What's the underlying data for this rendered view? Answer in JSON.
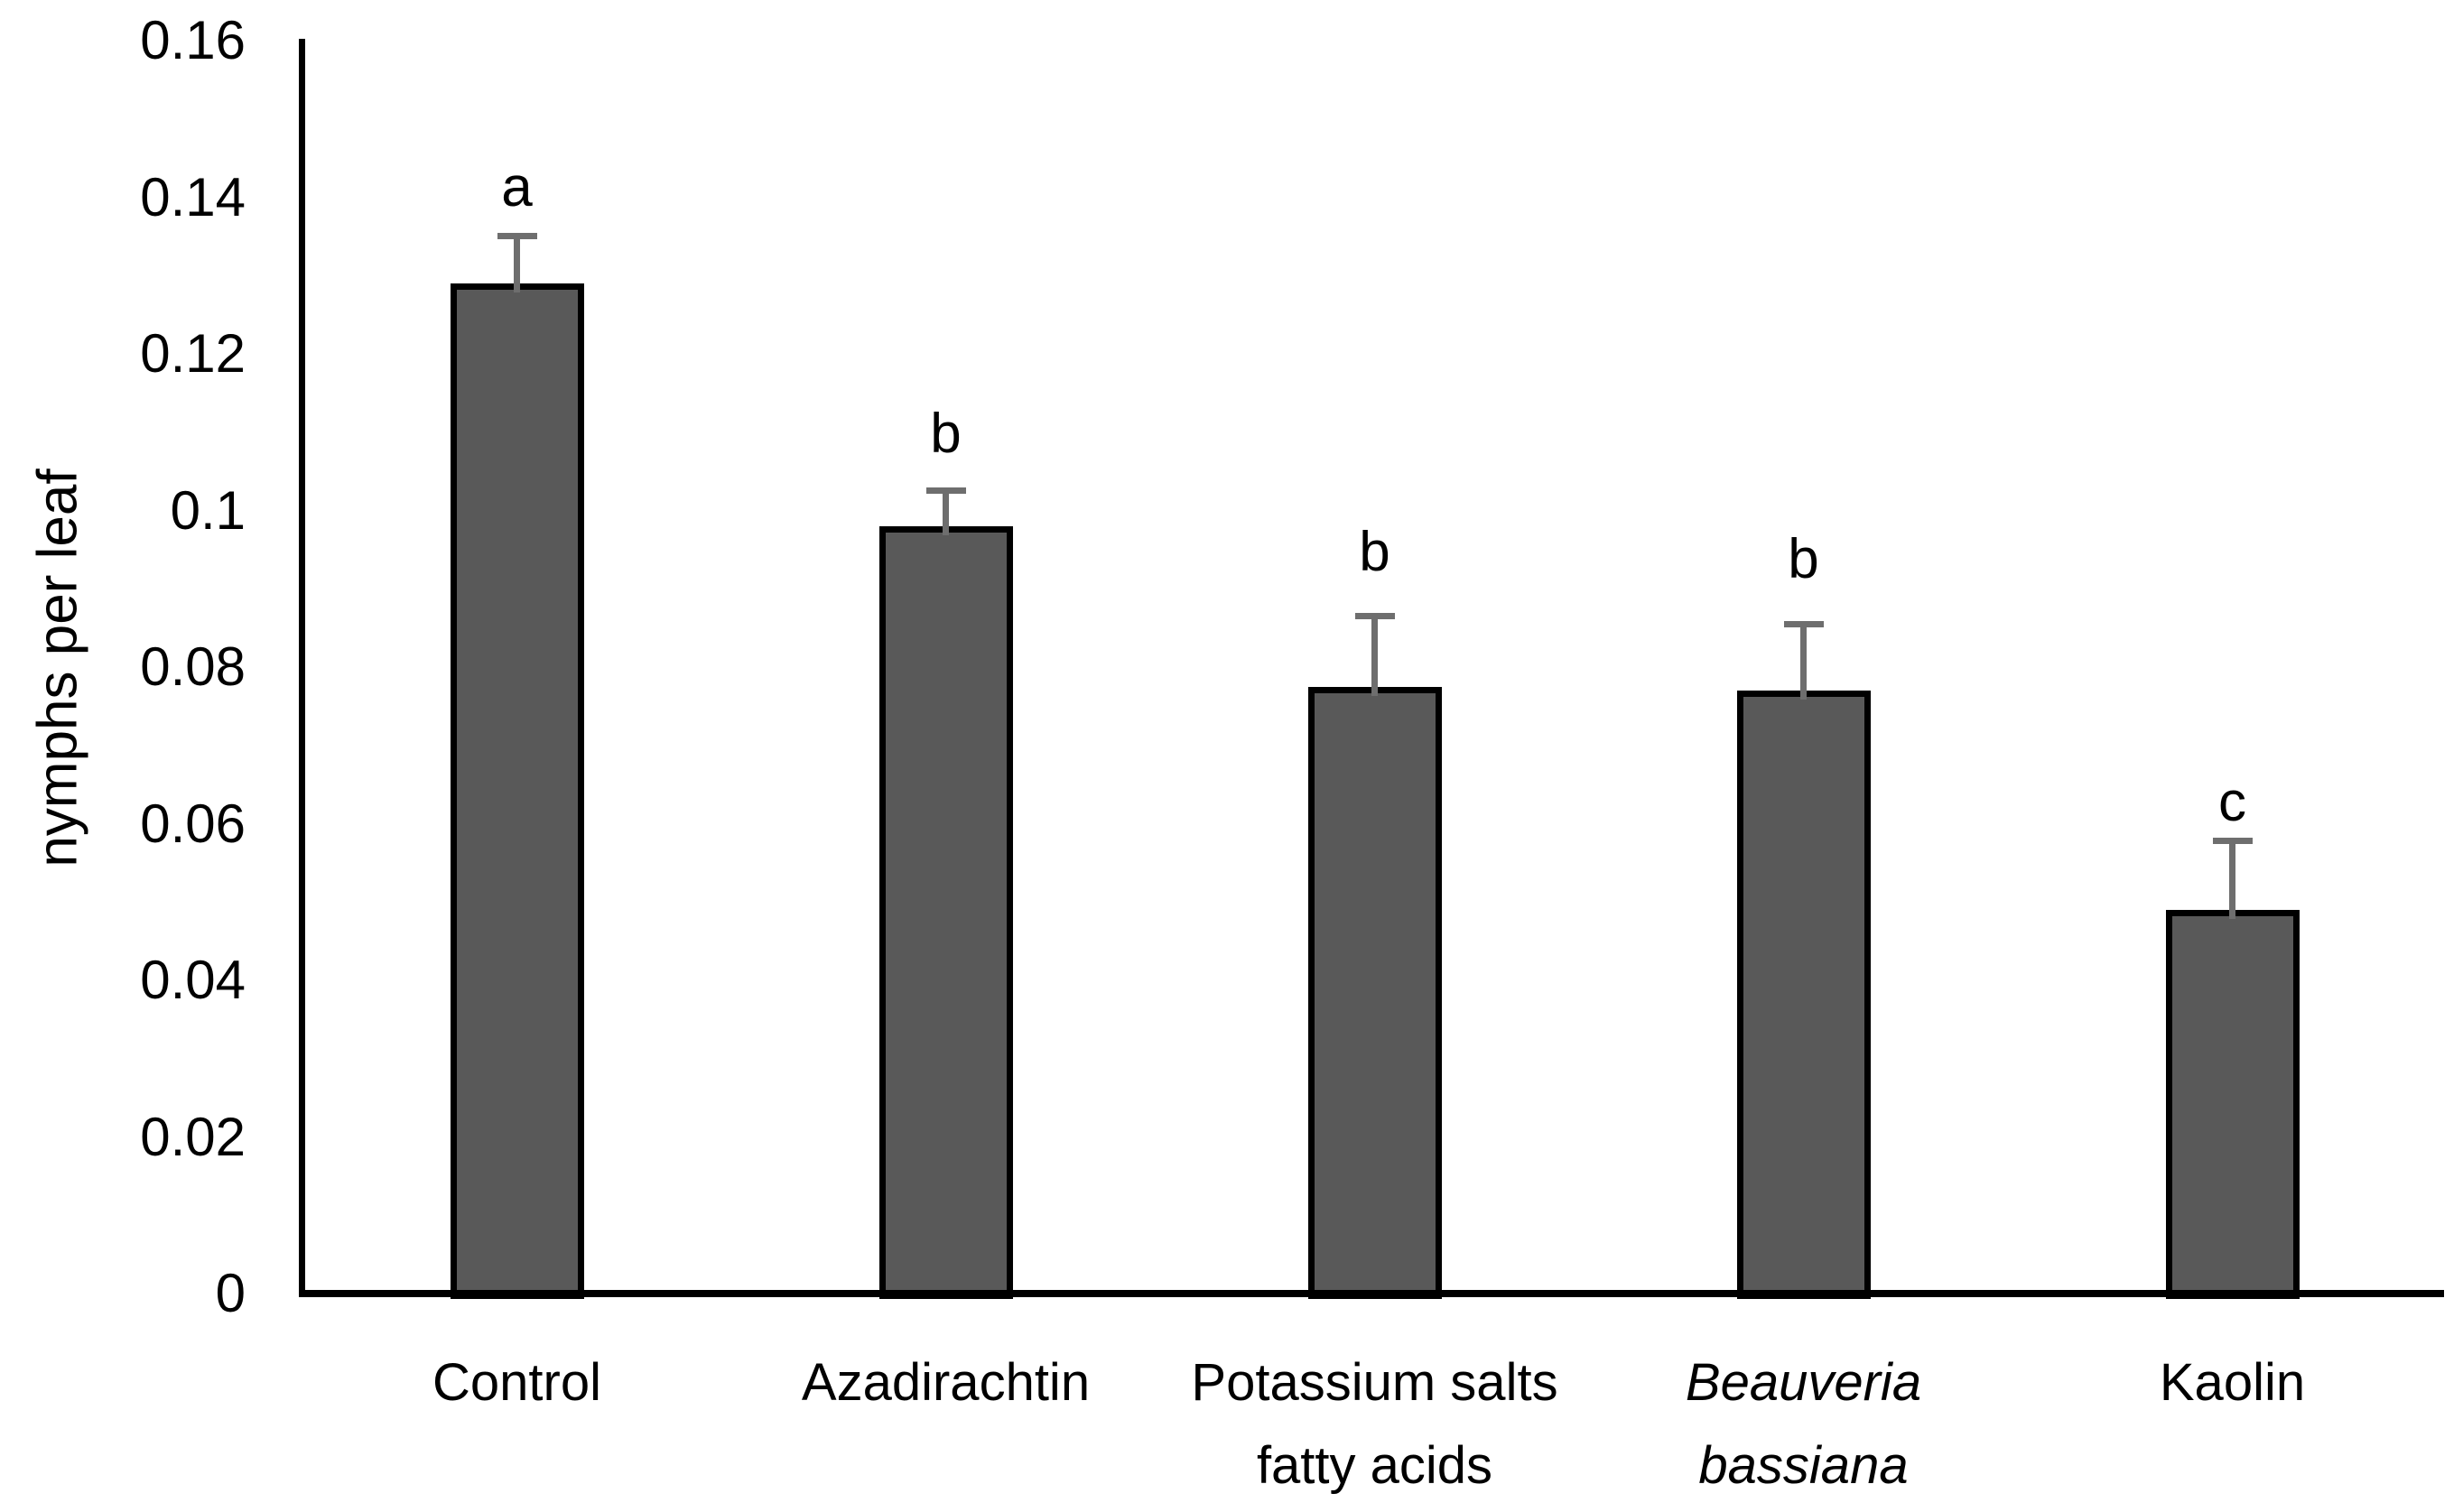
{
  "chart_data": {
    "type": "bar",
    "title": "",
    "xlabel": "",
    "ylabel": "nymphs per leaf",
    "ylim": [
      0,
      0.16
    ],
    "ytick_step": 0.02,
    "grid": false,
    "legend": false,
    "bar_fill_color": "#595959",
    "bar_border_color": "#000000",
    "error_bar_color": "#6e6e6e",
    "axis_color": "#000000",
    "yticks": [
      {
        "label": "0.16",
        "value": 0.16
      },
      {
        "label": "0.14",
        "value": 0.14
      },
      {
        "label": "0.12",
        "value": 0.12
      },
      {
        "label": "0.1",
        "value": 0.1
      },
      {
        "label": "0.08",
        "value": 0.08
      },
      {
        "label": "0.06",
        "value": 0.06
      },
      {
        "label": "0.04",
        "value": 0.04
      },
      {
        "label": "0.02",
        "value": 0.02
      },
      {
        "label": "0",
        "value": 0
      }
    ],
    "categories": [
      "Control",
      "Azadirachtin",
      "Potassium salts fatty acids",
      "Beauveria bassiana",
      "Kaolin"
    ],
    "bars": [
      {
        "category_lines": [
          "Control"
        ],
        "italic": false,
        "value": 0.129,
        "error_top": 0.135,
        "sig_letter": "a",
        "letter_bottom_value": 0.1375
      },
      {
        "category_lines": [
          "Azadirachtin"
        ],
        "italic": false,
        "value": 0.098,
        "error_top": 0.1025,
        "sig_letter": "b",
        "letter_bottom_value": 0.106
      },
      {
        "category_lines": [
          "Potassium salts",
          "fatty acids"
        ],
        "italic": false,
        "value": 0.0775,
        "error_top": 0.0865,
        "sig_letter": "b",
        "letter_bottom_value": 0.091
      },
      {
        "category_lines": [
          "Beauveria",
          "bassiana"
        ],
        "italic": true,
        "value": 0.077,
        "error_top": 0.0855,
        "sig_letter": "b",
        "letter_bottom_value": 0.09
      },
      {
        "category_lines": [
          "Kaolin"
        ],
        "italic": false,
        "value": 0.049,
        "error_top": 0.0578,
        "sig_letter": "c",
        "letter_bottom_value": 0.059
      }
    ]
  }
}
